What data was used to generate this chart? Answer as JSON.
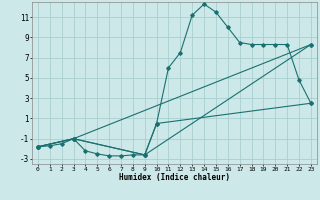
{
  "title": "",
  "xlabel": "Humidex (Indice chaleur)",
  "bg_color": "#cde8e8",
  "grid_color": "#aacece",
  "line_color": "#1a7070",
  "xlim": [
    -0.5,
    23.5
  ],
  "ylim": [
    -3.5,
    12.5
  ],
  "xticks": [
    0,
    1,
    2,
    3,
    4,
    5,
    6,
    7,
    8,
    9,
    10,
    11,
    12,
    13,
    14,
    15,
    16,
    17,
    18,
    19,
    20,
    21,
    22,
    23
  ],
  "yticks": [
    -3,
    -1,
    1,
    3,
    5,
    7,
    9,
    11
  ],
  "series1_x": [
    0,
    1,
    2,
    3,
    4,
    5,
    6,
    7,
    8,
    9,
    10,
    11,
    12,
    13,
    14,
    15,
    16,
    17,
    18,
    19,
    20,
    21,
    22,
    23
  ],
  "series1_y": [
    -1.8,
    -1.7,
    -1.5,
    -1.0,
    -2.2,
    -2.5,
    -2.7,
    -2.7,
    -2.6,
    -2.6,
    0.5,
    6.0,
    7.5,
    11.2,
    12.3,
    11.5,
    10.0,
    8.5,
    8.3,
    8.3,
    8.3,
    8.3,
    4.8,
    2.5
  ],
  "series2_x": [
    0,
    3,
    9,
    10,
    23
  ],
  "series2_y": [
    -1.8,
    -1.0,
    -2.6,
    0.5,
    2.5
  ],
  "series3_x": [
    0,
    3,
    9,
    23
  ],
  "series3_y": [
    -1.8,
    -1.0,
    -2.6,
    8.3
  ],
  "series4_x": [
    0,
    3,
    23
  ],
  "series4_y": [
    -1.8,
    -1.0,
    8.3
  ]
}
